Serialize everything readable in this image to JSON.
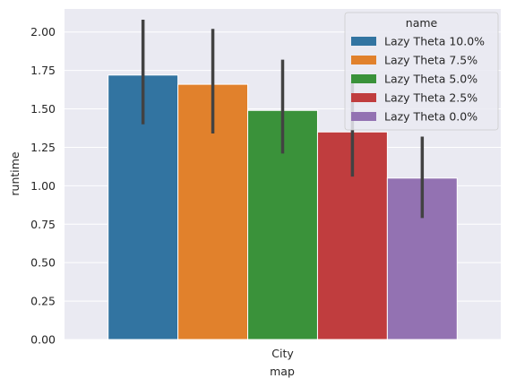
{
  "chart_data": {
    "type": "bar",
    "categories": [
      "City"
    ],
    "xlabel": "map",
    "ylabel": "runtime",
    "ylim": [
      0,
      2.15
    ],
    "yticks": [
      "0.00",
      "0.25",
      "0.50",
      "0.75",
      "1.00",
      "1.25",
      "1.50",
      "1.75",
      "2.00"
    ],
    "grid": true,
    "legend": {
      "title": "name",
      "position": "top-right"
    },
    "series": [
      {
        "name": "Lazy Theta 10.0%",
        "values": [
          1.72
        ],
        "ci": [
          [
            1.4,
            2.08
          ]
        ],
        "color": "#3274a1"
      },
      {
        "name": "Lazy Theta 7.5%",
        "values": [
          1.66
        ],
        "ci": [
          [
            1.34,
            2.02
          ]
        ],
        "color": "#e1812c"
      },
      {
        "name": "Lazy Theta 5.0%",
        "values": [
          1.49
        ],
        "ci": [
          [
            1.21,
            1.82
          ]
        ],
        "color": "#3a923a"
      },
      {
        "name": "Lazy Theta 2.5%",
        "values": [
          1.35
        ],
        "ci": [
          [
            1.06,
            1.68
          ]
        ],
        "color": "#c03d3e"
      },
      {
        "name": "Lazy Theta 0.0%",
        "values": [
          1.05
        ],
        "ci": [
          [
            0.79,
            1.32
          ]
        ],
        "color": "#9372b2"
      }
    ],
    "background": "#eaeaf2",
    "gridColor": "#ffffff",
    "errorBarColor": "#424242"
  }
}
